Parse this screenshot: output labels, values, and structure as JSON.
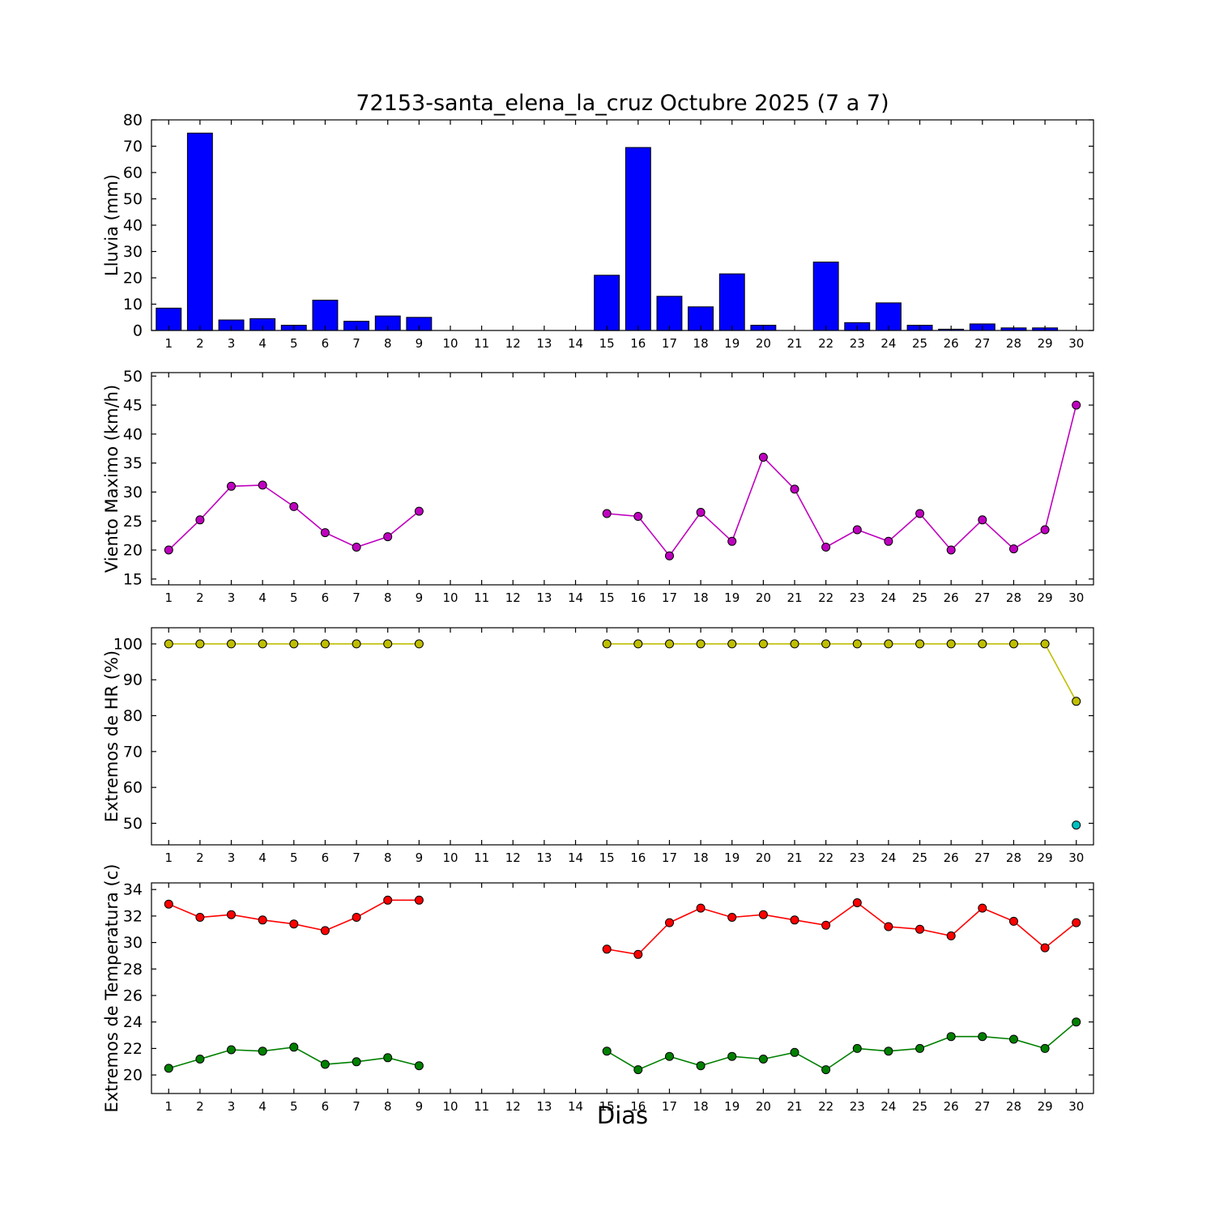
{
  "title": "72153-santa_elena_la_cruz Octubre 2025  (7 a 7)",
  "xlabel": "Dias",
  "days": [
    1,
    2,
    3,
    4,
    5,
    6,
    7,
    8,
    9,
    10,
    11,
    12,
    13,
    14,
    15,
    16,
    17,
    18,
    19,
    20,
    21,
    22,
    23,
    24,
    25,
    26,
    27,
    28,
    29,
    30
  ],
  "chart_data": [
    {
      "type": "bar",
      "ylabel": "Lluvia (mm)",
      "ylim": [
        0,
        80
      ],
      "yticks": [
        0,
        10,
        20,
        30,
        40,
        50,
        60,
        70,
        80
      ],
      "color": "#0000ff",
      "values": [
        8.5,
        75,
        4,
        4.5,
        2,
        11.5,
        3.5,
        5.5,
        5,
        0,
        0,
        0,
        0,
        0,
        21,
        69.5,
        13,
        9,
        21.5,
        2,
        0,
        26,
        3,
        10.5,
        2,
        0.5,
        2.5,
        1,
        1,
        0
      ]
    },
    {
      "type": "line",
      "ylabel": "Viento Maximo (km/h)",
      "ylim": [
        14,
        50.6
      ],
      "yticks": [
        15,
        20,
        25,
        30,
        35,
        40,
        45,
        50
      ],
      "series": [
        {
          "name": "viento-maximo",
          "color": "#bf00bf",
          "values": [
            20,
            25.2,
            31,
            31.2,
            27.5,
            23,
            20.5,
            22.3,
            26.7,
            null,
            null,
            null,
            null,
            null,
            26.3,
            25.8,
            19,
            26.5,
            21.5,
            36,
            30.5,
            20.5,
            23.5,
            21.5,
            26.3,
            20,
            25.2,
            20.2,
            23.5,
            45
          ]
        }
      ]
    },
    {
      "type": "line",
      "ylabel": "Extremos de HR (%)",
      "ylim": [
        44,
        104.5
      ],
      "yticks": [
        50,
        60,
        70,
        80,
        90,
        100
      ],
      "series": [
        {
          "name": "hr-maxima",
          "color": "#bfbf00",
          "values": [
            100,
            100,
            100,
            100,
            100,
            100,
            100,
            100,
            100,
            null,
            null,
            null,
            null,
            null,
            100,
            100,
            100,
            100,
            100,
            100,
            100,
            100,
            100,
            100,
            100,
            100,
            100,
            100,
            100,
            84
          ]
        },
        {
          "name": "hr-minima",
          "color": "#00bfbf",
          "values": [
            null,
            null,
            null,
            null,
            null,
            null,
            null,
            null,
            null,
            null,
            null,
            null,
            null,
            null,
            null,
            null,
            null,
            null,
            null,
            null,
            null,
            null,
            null,
            null,
            null,
            null,
            null,
            null,
            null,
            49.5
          ]
        }
      ]
    },
    {
      "type": "line",
      "ylabel": "Extremos de Temperatura (c)",
      "ylim": [
        18.6,
        34.5
      ],
      "yticks": [
        20,
        22,
        24,
        26,
        28,
        30,
        32,
        34
      ],
      "series": [
        {
          "name": "temperatura-maxima",
          "color": "#ff0000",
          "values": [
            32.9,
            31.9,
            32.1,
            31.7,
            31.4,
            30.9,
            31.9,
            33.2,
            33.2,
            null,
            null,
            null,
            null,
            null,
            29.5,
            29.1,
            31.5,
            32.6,
            31.9,
            32.1,
            31.7,
            31.3,
            33.0,
            31.2,
            31.0,
            30.5,
            32.6,
            31.6,
            29.6,
            31.5
          ]
        },
        {
          "name": "temperatura-minima",
          "color": "#008000",
          "values": [
            20.5,
            21.2,
            21.9,
            21.8,
            22.1,
            20.8,
            21.0,
            21.3,
            20.7,
            null,
            null,
            null,
            null,
            null,
            21.8,
            20.4,
            21.4,
            20.7,
            21.4,
            21.2,
            21.7,
            20.4,
            22.0,
            21.8,
            22.0,
            22.9,
            22.9,
            22.7,
            22.0,
            24.0
          ]
        }
      ]
    }
  ]
}
